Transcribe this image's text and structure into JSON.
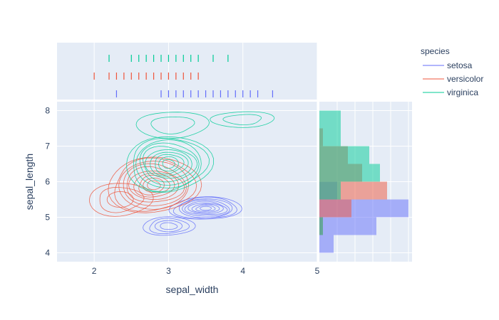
{
  "chart_data": {
    "type": "scatter",
    "subtype": "density_contour_with_marginals",
    "xlabel": "sepal_width",
    "ylabel": "sepal_length",
    "xlim": [
      1.5,
      5
    ],
    "ylim": [
      3.75,
      8.25
    ],
    "x_ticks": [
      "2",
      "3",
      "4",
      "5"
    ],
    "y_ticks": [
      "4",
      "5",
      "6",
      "7",
      "8"
    ],
    "grid": true,
    "legend": {
      "title": "species",
      "placement": "top-right",
      "entries": [
        "setosa",
        "versicolor",
        "virginica"
      ]
    },
    "marginal_x": "rug",
    "marginal_y": "histogram",
    "histogram_xlim": [
      0,
      26
    ],
    "series": [
      {
        "name": "setosa",
        "color": "#636efa",
        "rug_x": [
          2.3,
          2.9,
          3.0,
          3.1,
          3.2,
          3.3,
          3.4,
          3.5,
          3.6,
          3.7,
          3.8,
          3.9,
          4.0,
          4.1,
          4.2,
          4.4
        ],
        "histogram": [
          {
            "bin_start": 4.0,
            "bin_end": 4.5,
            "count": 4
          },
          {
            "bin_start": 4.5,
            "bin_end": 5.0,
            "count": 16
          },
          {
            "bin_start": 5.0,
            "bin_end": 5.5,
            "count": 25
          },
          {
            "bin_start": 5.5,
            "bin_end": 6.0,
            "count": 5
          }
        ],
        "density_peaks": [
          {
            "x": 3.5,
            "y": 5.25,
            "sx": 0.25,
            "sy": 0.17,
            "levels": 9
          },
          {
            "x": 3.0,
            "y": 4.75,
            "sx": 0.18,
            "sy": 0.14,
            "levels": 4
          }
        ]
      },
      {
        "name": "versicolor",
        "color": "#ef553b",
        "rug_x": [
          2.0,
          2.2,
          2.3,
          2.4,
          2.5,
          2.6,
          2.7,
          2.8,
          2.9,
          3.0,
          3.1,
          3.2,
          3.3,
          3.4
        ],
        "histogram": [
          {
            "bin_start": 4.5,
            "bin_end": 5.0,
            "count": 1
          },
          {
            "bin_start": 5.0,
            "bin_end": 5.5,
            "count": 9
          },
          {
            "bin_start": 5.5,
            "bin_end": 6.0,
            "count": 19
          },
          {
            "bin_start": 6.0,
            "bin_end": 6.5,
            "count": 12
          },
          {
            "bin_start": 6.5,
            "bin_end": 7.0,
            "count": 8
          },
          {
            "bin_start": 7.0,
            "bin_end": 7.5,
            "count": 1
          }
        ],
        "density_peaks": [
          {
            "x": 2.8,
            "y": 5.9,
            "sx": 0.32,
            "sy": 0.42,
            "levels": 10
          },
          {
            "x": 2.35,
            "y": 5.5,
            "sx": 0.22,
            "sy": 0.25,
            "levels": 3
          }
        ]
      },
      {
        "name": "virginica",
        "color": "#00cc96",
        "rug_x": [
          2.2,
          2.5,
          2.6,
          2.7,
          2.8,
          2.9,
          3.0,
          3.1,
          3.2,
          3.3,
          3.4,
          3.6,
          3.8
        ],
        "histogram": [
          {
            "bin_start": 4.5,
            "bin_end": 5.0,
            "count": 1
          },
          {
            "bin_start": 5.5,
            "bin_end": 6.0,
            "count": 6
          },
          {
            "bin_start": 6.0,
            "bin_end": 6.5,
            "count": 17
          },
          {
            "bin_start": 6.5,
            "bin_end": 7.0,
            "count": 14
          },
          {
            "bin_start": 7.0,
            "bin_end": 7.5,
            "count": 6
          },
          {
            "bin_start": 7.5,
            "bin_end": 8.0,
            "count": 6
          }
        ],
        "density_peaks": [
          {
            "x": 3.0,
            "y": 6.5,
            "sx": 0.3,
            "sy": 0.42,
            "levels": 10
          },
          {
            "x": 3.05,
            "y": 7.6,
            "sx": 0.25,
            "sy": 0.2,
            "levels": 2
          },
          {
            "x": 4.0,
            "y": 7.75,
            "sx": 0.22,
            "sy": 0.12,
            "levels": 2
          }
        ]
      }
    ]
  }
}
